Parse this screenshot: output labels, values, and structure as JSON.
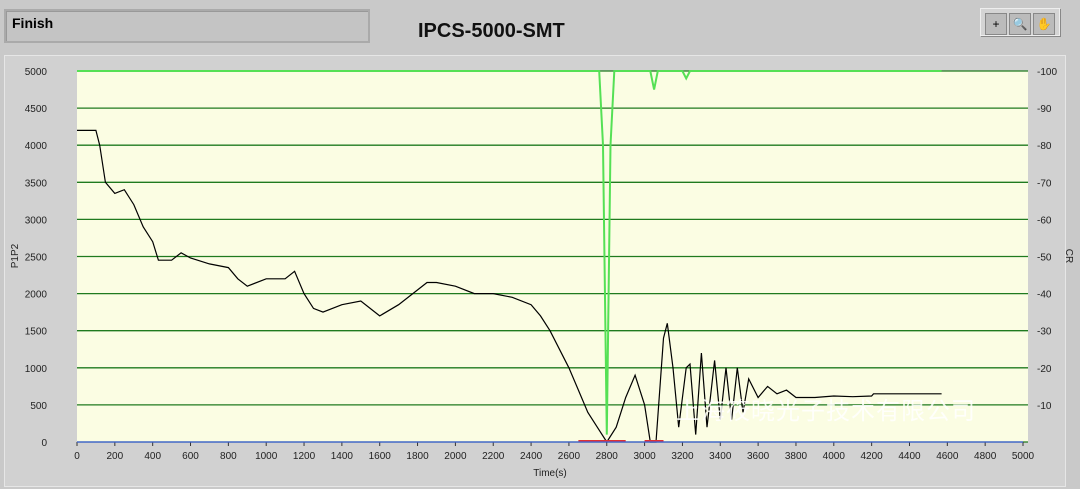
{
  "status_text": "Finish",
  "title": "IPCS-5000-SMT",
  "toolbar": {
    "icons": [
      "cursor-crosshair-icon",
      "zoom-icon",
      "pan-hand-icon"
    ],
    "glyphs": [
      "+",
      "🔍",
      "✋"
    ]
  },
  "watermark": "上海筱晓光子技术有限公司",
  "colors": {
    "plot_bg": "#fbfde3",
    "grid": "#1f7a1f",
    "p1p2": "#000000",
    "cr": "#55e055",
    "red": "#e03030",
    "blue": "#4060e0"
  },
  "chart_data": {
    "type": "line",
    "xlabel": "Time(s)",
    "ylabel": "P1P2",
    "y2label": "CR",
    "xlim": [
      0,
      5000
    ],
    "ylim": [
      0,
      5000
    ],
    "y2lim": [
      0,
      100
    ],
    "xticks": [
      0,
      200,
      400,
      600,
      800,
      1000,
      1200,
      1400,
      1600,
      1800,
      2000,
      2200,
      2400,
      2600,
      2800,
      3000,
      3200,
      3400,
      3600,
      3800,
      4000,
      4200,
      4400,
      4600,
      4800,
      5000
    ],
    "yticks": [
      0,
      500,
      1000,
      1500,
      2000,
      2500,
      3000,
      3500,
      4000,
      4500,
      5000
    ],
    "y2ticks": [
      10,
      20,
      30,
      40,
      50,
      60,
      70,
      80,
      90,
      100
    ],
    "grid": true,
    "series": [
      {
        "axis": "left",
        "color": "#000000",
        "x": [
          0,
          100,
          120,
          150,
          200,
          250,
          300,
          350,
          400,
          430,
          500,
          550,
          600,
          700,
          800,
          850,
          900,
          1000,
          1100,
          1150,
          1200,
          1250,
          1300,
          1400,
          1500,
          1600,
          1700,
          1800,
          1850,
          1900,
          2000,
          2100,
          2200,
          2300,
          2400,
          2450,
          2500,
          2600,
          2650,
          2700,
          2750,
          2800,
          2850,
          2900,
          2950,
          3000,
          3030,
          3060,
          3100,
          3120,
          3150,
          3180,
          3220,
          3240,
          3270,
          3300,
          3330,
          3370,
          3400,
          3430,
          3460,
          3490,
          3520,
          3550,
          3600,
          3650,
          3700,
          3750,
          3800,
          3900,
          4000,
          4100,
          4200,
          4210,
          4570
        ],
        "y": [
          4200,
          4200,
          4000,
          3500,
          3350,
          3400,
          3200,
          2900,
          2700,
          2450,
          2450,
          2550,
          2480,
          2400,
          2350,
          2200,
          2100,
          2200,
          2200,
          2300,
          2000,
          1800,
          1750,
          1850,
          1900,
          1700,
          1850,
          2050,
          2150,
          2150,
          2100,
          2000,
          2000,
          1950,
          1850,
          1700,
          1500,
          1000,
          700,
          400,
          200,
          0,
          200,
          600,
          900,
          500,
          0,
          0,
          1400,
          1600,
          1000,
          200,
          1000,
          1050,
          100,
          1200,
          200,
          1100,
          300,
          1000,
          300,
          1000,
          400,
          850,
          600,
          750,
          650,
          700,
          600,
          600,
          620,
          610,
          620,
          650,
          650
        ]
      },
      {
        "axis": "right",
        "color": "#55e055",
        "x": [
          0,
          2760,
          2780,
          2800,
          2820,
          2840,
          3030,
          3050,
          3070,
          3200,
          3220,
          3240,
          4570
        ],
        "y": [
          100,
          100,
          80,
          2,
          80,
          100,
          100,
          95,
          100,
          100,
          98,
          100,
          100
        ]
      },
      {
        "axis": "left",
        "color": "#e03030",
        "segments": [
          [
            2650,
            2900
          ],
          [
            3000,
            3100
          ]
        ],
        "y": 0
      },
      {
        "axis": "left",
        "color": "#4060e0",
        "x": [
          0,
          5000
        ],
        "y": [
          0,
          0
        ]
      }
    ]
  }
}
